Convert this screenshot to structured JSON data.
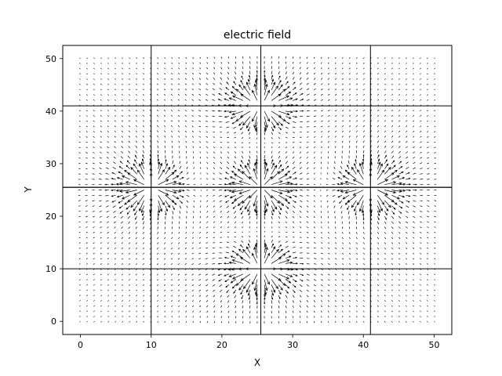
{
  "chart_data": {
    "type": "quiver",
    "title": "electric field",
    "xlabel": "X",
    "ylabel": "Y",
    "xlim": [
      -2.5,
      52.5
    ],
    "ylim": [
      -2.5,
      52.5
    ],
    "xticks": [
      0,
      10,
      20,
      30,
      40,
      50
    ],
    "yticks": [
      0,
      10,
      20,
      30,
      40,
      50
    ],
    "grid": false,
    "grid_range": [
      0,
      50
    ],
    "grid_step": 1,
    "charges": [
      {
        "x": 25.5,
        "y": 41
      },
      {
        "x": 10,
        "y": 25.5
      },
      {
        "x": 25.5,
        "y": 25.5
      },
      {
        "x": 41,
        "y": 25.5
      },
      {
        "x": 25.5,
        "y": 10
      }
    ],
    "field_lines": [
      {
        "x": 10,
        "y": 25.5
      },
      {
        "x": 25.5,
        "y": 25.5
      },
      {
        "x": 41,
        "y": 25.5
      },
      {
        "x": 25.5,
        "y": 41
      },
      {
        "x": 25.5,
        "y": 10
      }
    ]
  }
}
